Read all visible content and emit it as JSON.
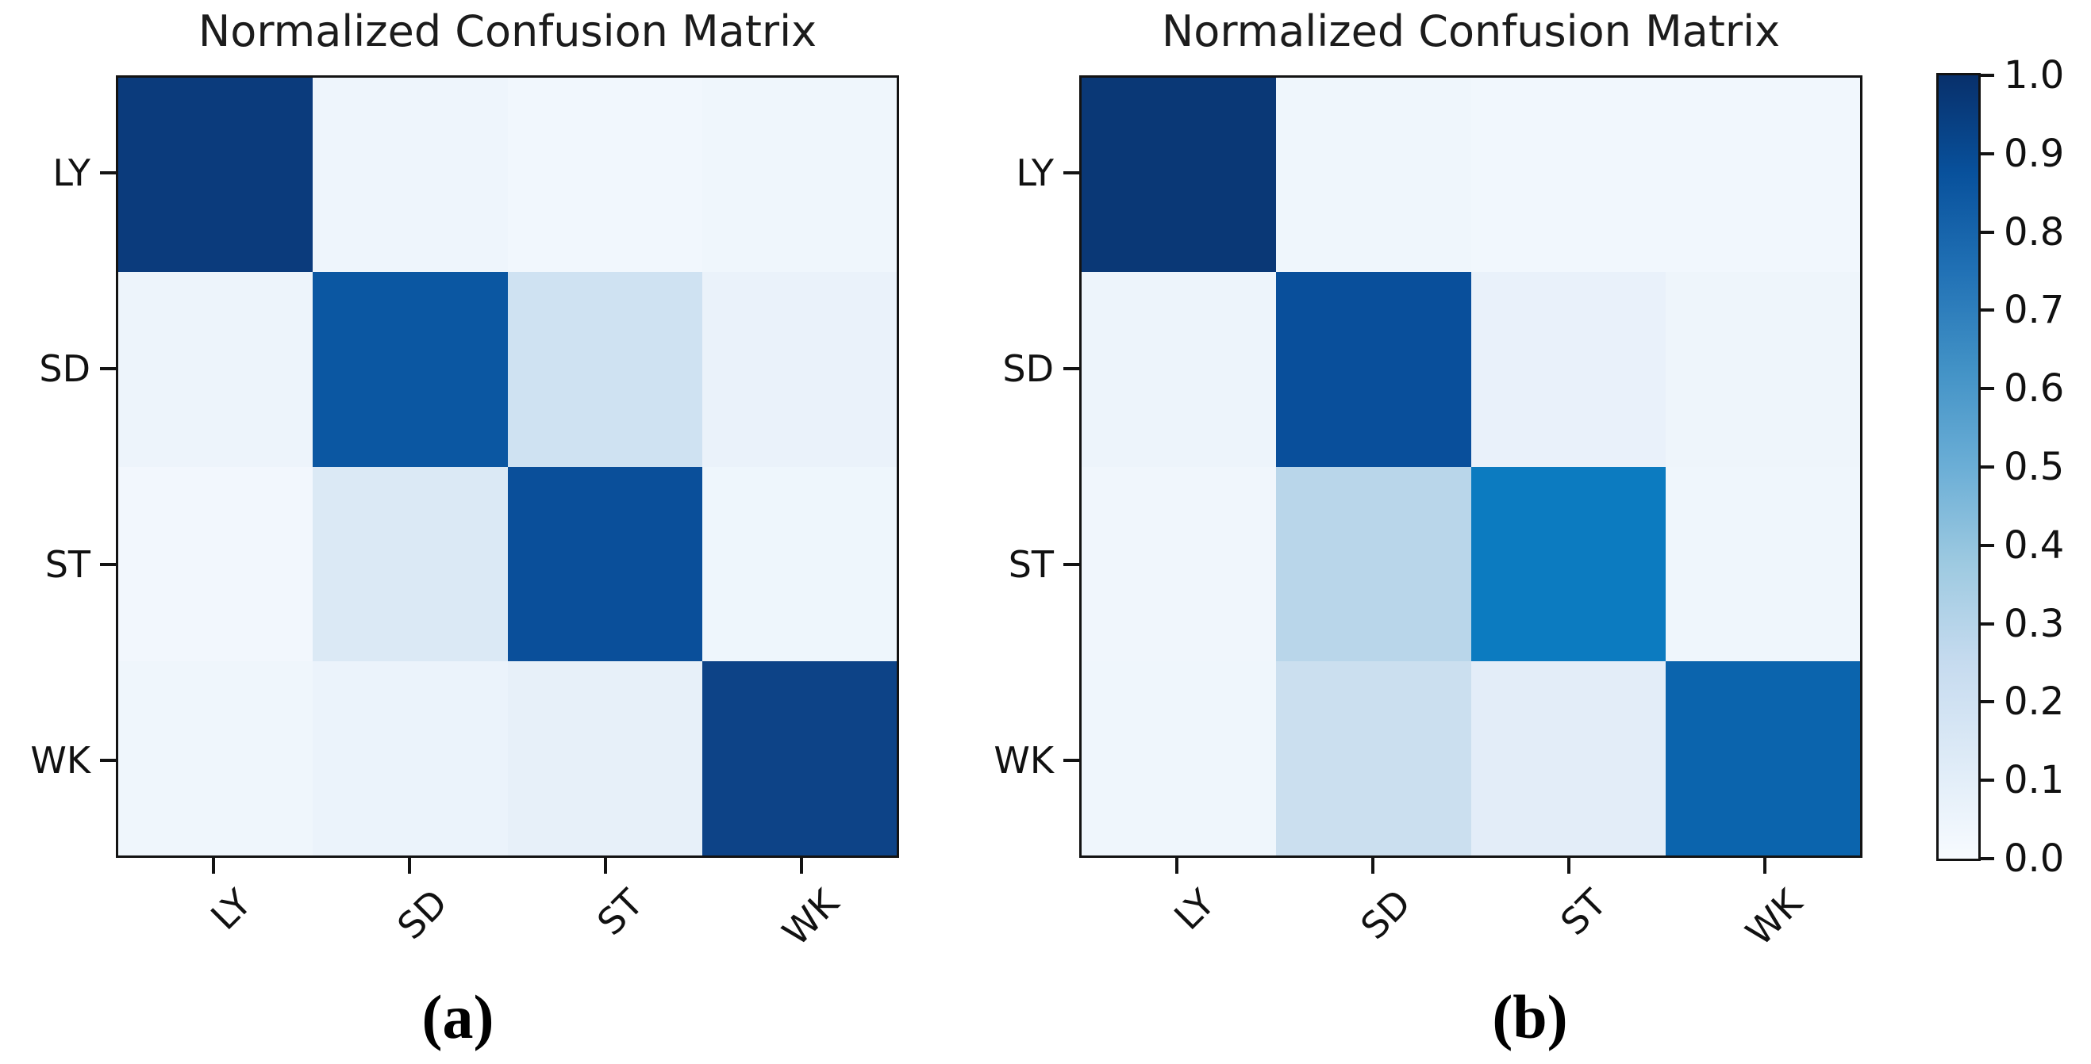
{
  "figure": {
    "background": "#ffffff",
    "captions": [
      {
        "label": "(a)"
      },
      {
        "label": "(b)"
      }
    ]
  },
  "colormap": {
    "name": "Blues",
    "stops": [
      "#f7fbff",
      "#deebf7",
      "#c6dbef",
      "#9ecae1",
      "#6baed6",
      "#4292c6",
      "#2171b5",
      "#08519c",
      "#08306b"
    ]
  },
  "colorbar": {
    "vmin": 0.0,
    "vmax": 1.0,
    "tick_labels": [
      "1.0",
      "0.9",
      "0.8",
      "0.7",
      "0.6",
      "0.5",
      "0.4",
      "0.3",
      "0.2",
      "0.1",
      "0.0"
    ]
  },
  "chart_data": [
    {
      "type": "heatmap",
      "panel": "a",
      "title": "Normalized Confusion Matrix",
      "classes": [
        "LY",
        "SD",
        "ST",
        "WK"
      ],
      "x_tick_labels": [
        "LY",
        "SD",
        "ST",
        "WK"
      ],
      "y_tick_labels": [
        "LY",
        "SD",
        "ST",
        "WK"
      ],
      "x_tick_rotation": 45,
      "vmin": 0.0,
      "vmax": 1.0,
      "values": [
        [
          0.95,
          0.03,
          0.02,
          0.03
        ],
        [
          0.03,
          0.8,
          0.18,
          0.05
        ],
        [
          0.02,
          0.12,
          0.86,
          0.03
        ],
        [
          0.03,
          0.05,
          0.08,
          0.92
        ]
      ],
      "cell_colors": [
        [
          "#0b3b7c",
          "#eef5fc",
          "#f1f7fd",
          "#eff6fc"
        ],
        [
          "#edf4fb",
          "#0b57a2",
          "#cfe2f2",
          "#eaf2fa"
        ],
        [
          "#f2f7fd",
          "#dbe9f5",
          "#0a4f9a",
          "#eef6fc"
        ],
        [
          "#eff6fc",
          "#ebf3fb",
          "#e7f0f9",
          "#0d4387"
        ]
      ]
    },
    {
      "type": "heatmap",
      "panel": "b",
      "title": "Normalized Confusion Matrix",
      "classes": [
        "LY",
        "SD",
        "ST",
        "WK"
      ],
      "x_tick_labels": [
        "LY",
        "SD",
        "ST",
        "WK"
      ],
      "y_tick_labels": [
        "LY",
        "SD",
        "ST",
        "WK"
      ],
      "x_tick_rotation": 45,
      "vmin": 0.0,
      "vmax": 1.0,
      "values": [
        [
          0.96,
          0.02,
          0.02,
          0.02
        ],
        [
          0.03,
          0.87,
          0.05,
          0.03
        ],
        [
          0.02,
          0.28,
          0.65,
          0.02
        ],
        [
          0.03,
          0.2,
          0.08,
          0.78
        ]
      ],
      "cell_colors": [
        [
          "#0a3876",
          "#eff6fc",
          "#f1f7fd",
          "#f1f7fd"
        ],
        [
          "#edf4fb",
          "#094f9b",
          "#e9f1fa",
          "#eef5fb"
        ],
        [
          "#f0f6fc",
          "#b9d6ea",
          "#0c7bc0",
          "#eff6fc"
        ],
        [
          "#eff6fc",
          "#cbdfef",
          "#e3edf8",
          "#0b64ad"
        ]
      ]
    }
  ]
}
